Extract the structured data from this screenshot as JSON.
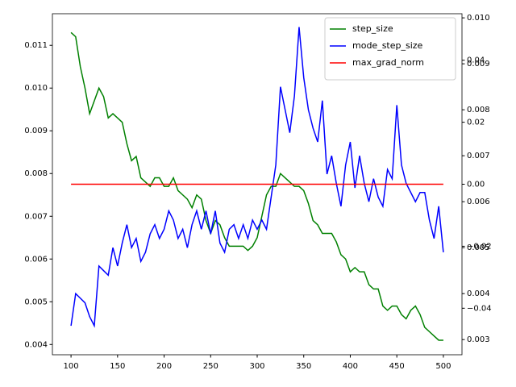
{
  "chart_data": {
    "type": "line",
    "x": [
      100,
      105,
      110,
      115,
      120,
      125,
      130,
      135,
      140,
      145,
      150,
      155,
      160,
      165,
      170,
      175,
      180,
      185,
      190,
      195,
      200,
      205,
      210,
      215,
      220,
      225,
      230,
      235,
      240,
      245,
      250,
      255,
      260,
      265,
      270,
      275,
      280,
      285,
      290,
      295,
      300,
      305,
      310,
      315,
      320,
      325,
      330,
      335,
      340,
      345,
      350,
      355,
      360,
      365,
      370,
      375,
      380,
      385,
      390,
      395,
      400,
      405,
      410,
      415,
      420,
      425,
      430,
      435,
      440,
      445,
      450,
      455,
      460,
      465,
      470,
      475,
      480,
      485,
      490,
      495,
      500
    ],
    "xlim": [
      80,
      520
    ],
    "xticks": [
      100,
      150,
      200,
      250,
      300,
      350,
      400,
      450,
      500
    ],
    "ylim": [
      0.00376,
      0.01174
    ],
    "yticks": [
      0.004,
      0.005,
      0.006,
      0.007,
      0.008,
      0.009,
      {
        "value": 0.01,
        "label": "0.010"
      },
      0.011
    ],
    "y2lim": [
      0.00267,
      0.01009
    ],
    "y2ticks": [
      0.003,
      0.004,
      0.005,
      0.006,
      0.007,
      0.008,
      0.009,
      {
        "value": 0.01,
        "label": "0.010"
      }
    ],
    "y3lim": [
      -0.055,
      0.055
    ],
    "y3ticks": [
      {
        "value": -0.04,
        "label": "−0.04"
      },
      {
        "value": -0.02,
        "label": "−0.02"
      },
      {
        "value": 0,
        "label": "0.00"
      },
      0.02,
      0.04
    ],
    "series": [
      {
        "name": "step_size",
        "color": "#008000",
        "axis": "y",
        "values": [
          0.0113,
          0.0112,
          0.0105,
          0.01,
          0.0094,
          0.0097,
          0.01,
          0.0098,
          0.0093,
          0.0094,
          0.0093,
          0.0092,
          0.0087,
          0.0083,
          0.0084,
          0.0079,
          0.0078,
          0.0077,
          0.0079,
          0.0079,
          0.0077,
          0.0077,
          0.0079,
          0.0076,
          0.0075,
          0.0074,
          0.0072,
          0.0075,
          0.0074,
          0.0069,
          0.0066,
          0.0069,
          0.0068,
          0.0065,
          0.0063,
          0.0063,
          0.0063,
          0.0063,
          0.0062,
          0.0063,
          0.0065,
          0.007,
          0.0075,
          0.0077,
          0.0077,
          0.008,
          0.0079,
          0.0078,
          0.0077,
          0.0077,
          0.0076,
          0.0073,
          0.0069,
          0.0068,
          0.0066,
          0.0066,
          0.0066,
          0.0064,
          0.0061,
          0.006,
          0.0057,
          0.0058,
          0.0057,
          0.0057,
          0.0054,
          0.0053,
          0.0053,
          0.0049,
          0.0048,
          0.0049,
          0.0049,
          0.0047,
          0.0046,
          0.0048,
          0.0049,
          0.0047,
          0.0044,
          0.0043,
          0.0042,
          0.0041,
          0.0041
        ]
      },
      {
        "name": "mode_step_size",
        "color": "#0000ff",
        "axis": "y2",
        "values": [
          0.0033,
          0.004,
          0.0039,
          0.0038,
          0.0035,
          0.0033,
          0.0046,
          0.0045,
          0.0044,
          0.005,
          0.0046,
          0.0051,
          0.0055,
          0.005,
          0.0052,
          0.0047,
          0.0049,
          0.0053,
          0.0055,
          0.0052,
          0.0054,
          0.0058,
          0.0056,
          0.0052,
          0.0054,
          0.005,
          0.0055,
          0.0058,
          0.0054,
          0.0058,
          0.0053,
          0.0058,
          0.0051,
          0.0049,
          0.0054,
          0.0055,
          0.0052,
          0.0055,
          0.0052,
          0.0056,
          0.0054,
          0.0056,
          0.0054,
          0.0061,
          0.0068,
          0.0085,
          0.008,
          0.0075,
          0.0083,
          0.0098,
          0.0087,
          0.008,
          0.0076,
          0.0073,
          0.0082,
          0.0066,
          0.007,
          0.0064,
          0.0059,
          0.0068,
          0.0073,
          0.0063,
          0.007,
          0.0064,
          0.006,
          0.0065,
          0.0061,
          0.0059,
          0.0067,
          0.0065,
          0.0081,
          0.0068,
          0.0064,
          0.0062,
          0.006,
          0.0062,
          0.0062,
          0.0056,
          0.0052,
          0.0059,
          0.0049
        ]
      },
      {
        "name": "max_grad_norm",
        "color": "#ff0000",
        "axis": "y3",
        "x": [
          100,
          500
        ],
        "values": [
          0,
          0
        ]
      }
    ],
    "legend": "upper right"
  }
}
